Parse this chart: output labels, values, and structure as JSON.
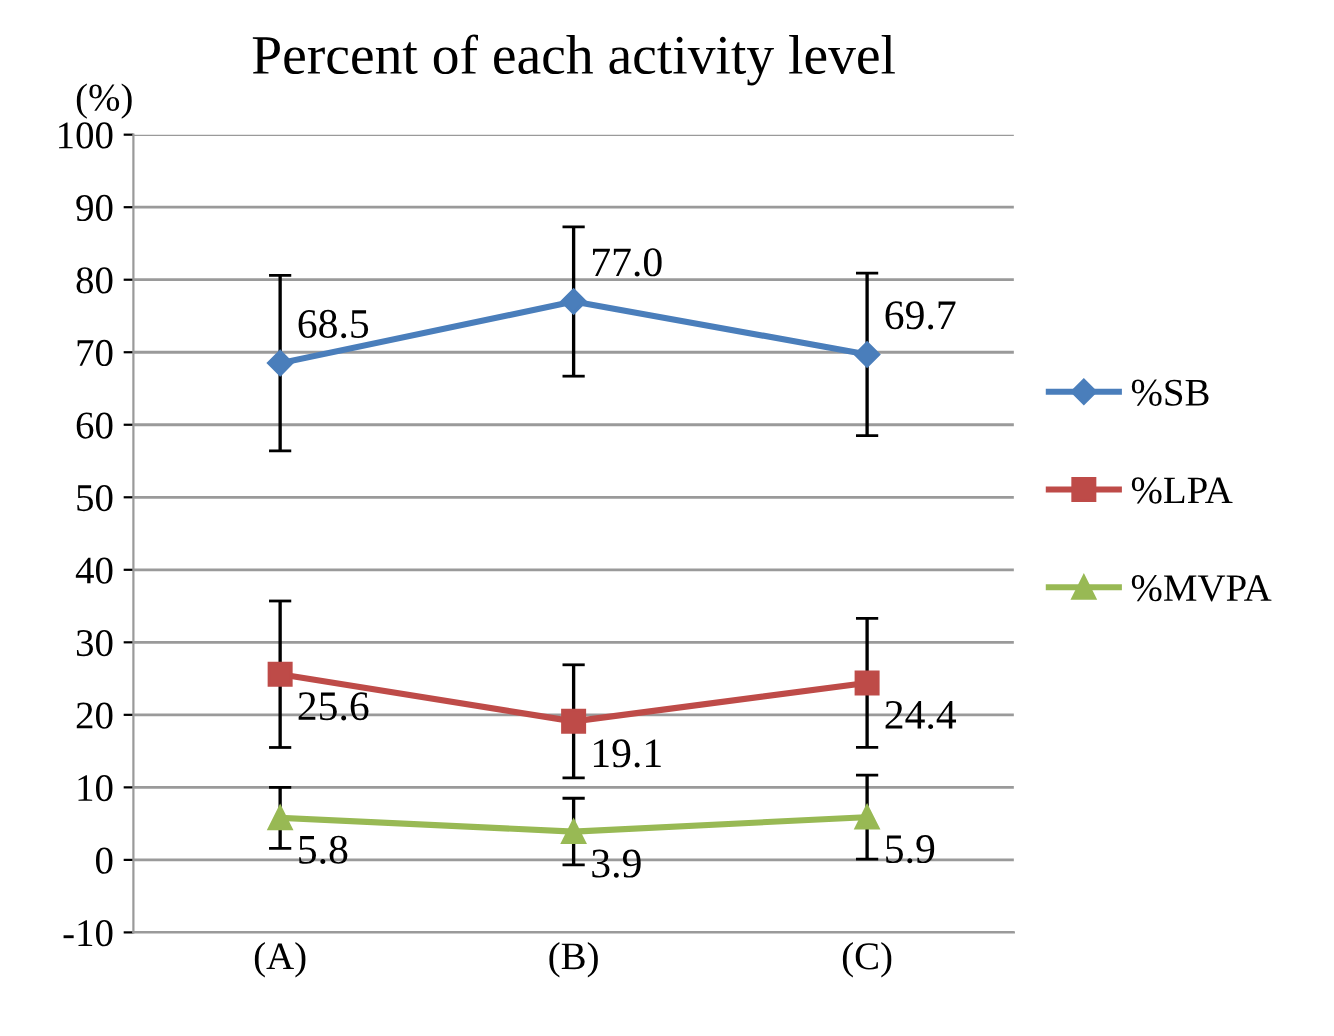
{
  "chart_data": {
    "type": "line",
    "title": "Percent of each activity level",
    "ylabel": "(%)",
    "categories": [
      "(A)",
      "(B)",
      "(C)"
    ],
    "series": [
      {
        "name": "%SB",
        "color": "#4a7ebb",
        "marker": "diamond",
        "values": [
          68.5,
          77.0,
          69.7
        ],
        "errors": [
          12.1,
          10.3,
          11.2
        ],
        "value_labels": [
          "68.5",
          "77.0",
          "69.7"
        ]
      },
      {
        "name": "%LPA",
        "color": "#be4b48",
        "marker": "square",
        "values": [
          25.6,
          19.1,
          24.4
        ],
        "errors": [
          10.1,
          7.8,
          8.9
        ],
        "value_labels": [
          "25.6",
          "19.1",
          "24.4"
        ]
      },
      {
        "name": "%MVPA",
        "color": "#98b954",
        "marker": "triangle",
        "values": [
          5.8,
          3.9,
          5.9
        ],
        "errors": [
          4.2,
          4.6,
          5.8
        ],
        "value_labels": [
          "5.8",
          "3.9",
          "5.9"
        ]
      }
    ],
    "ylim": [
      -10,
      100
    ],
    "yticks": [
      -10,
      0,
      10,
      20,
      30,
      40,
      50,
      60,
      70,
      80,
      90,
      100
    ],
    "grid": "y",
    "legend": "right",
    "line_style": "solid"
  }
}
